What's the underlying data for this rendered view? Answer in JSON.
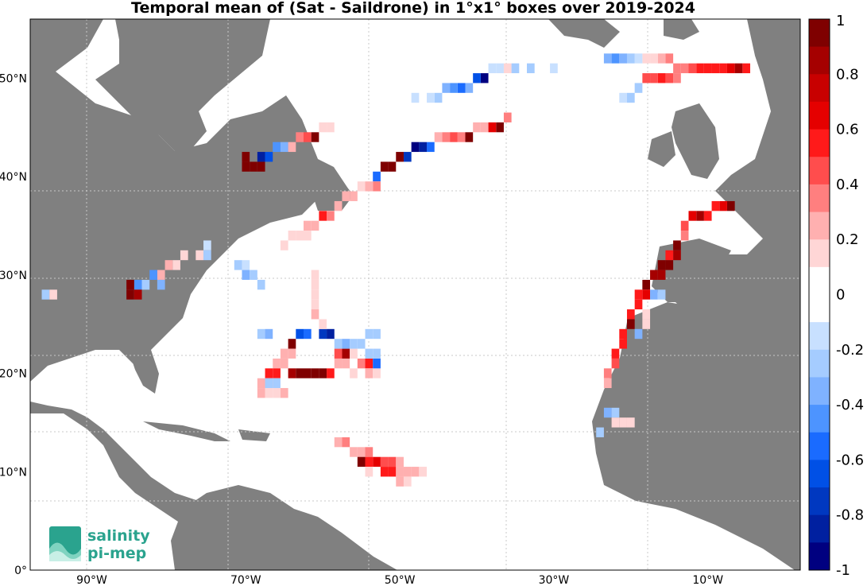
{
  "title": "Temporal mean of (Sat - Saildrone) in 1°x1° boxes over 2019-2024",
  "map": {
    "lon_range": [
      -98,
      2
    ],
    "lat_range": [
      0,
      56
    ],
    "lon_ticks": [
      {
        "value": -90,
        "label": "90°W"
      },
      {
        "value": -70,
        "label": "70°W"
      },
      {
        "value": -50,
        "label": "50°W"
      },
      {
        "value": -30,
        "label": "30°W"
      },
      {
        "value": -10,
        "label": "10°W"
      }
    ],
    "lat_ticks": [
      {
        "value": 0,
        "label": "0°"
      },
      {
        "value": 10,
        "label": "10°N"
      },
      {
        "value": 20,
        "label": "20°N"
      },
      {
        "value": 30,
        "label": "30°N"
      },
      {
        "value": 40,
        "label": "40°N"
      },
      {
        "value": 50,
        "label": "50°N"
      }
    ],
    "land_color": "#808080",
    "ocean_color": "#ffffff",
    "grid": "dotted"
  },
  "colorbar": {
    "range": [
      -1,
      1
    ],
    "ticks": [
      "1",
      "0.8",
      "0.6",
      "0.4",
      "0.2",
      "0",
      "-0.2",
      "-0.4",
      "-0.6",
      "-0.8",
      "-1"
    ],
    "colors_top_to_bottom": [
      "#7f0000",
      "#a50000",
      "#c80000",
      "#e50000",
      "#ff1a1a",
      "#ff4d4d",
      "#ff7f7f",
      "#ffb0b0",
      "#ffd6d6",
      "#ffffff",
      "#ffffff",
      "#c8e0ff",
      "#a5ccff",
      "#7fb2ff",
      "#4d94ff",
      "#1a6bff",
      "#0050e6",
      "#0038c0",
      "#0020a0",
      "#000080"
    ]
  },
  "chart_data": {
    "type": "heatmap",
    "title": "Temporal mean of (Sat - Saildrone) in 1°x1° boxes over 2019-2024",
    "xlabel": "",
    "ylabel": "",
    "value_range": [
      -1,
      1
    ],
    "cells_note": "lon, lat, value",
    "cells": [
      [
        -7,
        37,
        0.95
      ],
      [
        -8,
        37,
        0.7
      ],
      [
        -9,
        37,
        0.6
      ],
      [
        -10,
        36,
        0.6
      ],
      [
        -11,
        36,
        0.8
      ],
      [
        -12,
        36,
        0.7
      ],
      [
        -13,
        35,
        0.5
      ],
      [
        -13,
        34,
        0.4
      ],
      [
        -14,
        33,
        0.95
      ],
      [
        -14,
        32,
        0.8
      ],
      [
        -15,
        32,
        0.6
      ],
      [
        -15,
        31,
        0.9
      ],
      [
        -16,
        31,
        0.9
      ],
      [
        -16,
        30,
        0.8
      ],
      [
        -17,
        30,
        0.8
      ],
      [
        -18,
        29,
        0.9
      ],
      [
        -18,
        28,
        0.7
      ],
      [
        -19,
        28,
        0.6
      ],
      [
        -19,
        27,
        0.6
      ],
      [
        -20,
        26,
        0.6
      ],
      [
        -20,
        25,
        0.95
      ],
      [
        -21,
        24,
        0.6
      ],
      [
        -21,
        23,
        0.6
      ],
      [
        -22,
        22,
        0.6
      ],
      [
        -22,
        21,
        0.5
      ],
      [
        -23,
        20,
        0.4
      ],
      [
        -23,
        19,
        0.3
      ],
      [
        -19,
        24,
        -0.3
      ],
      [
        -18,
        25,
        0.2
      ],
      [
        -18,
        26,
        0.2
      ],
      [
        -17,
        28,
        -0.3
      ],
      [
        -16,
        28,
        -0.2
      ],
      [
        -23,
        16,
        -0.3
      ],
      [
        -22,
        16,
        -0.2
      ],
      [
        -22,
        15,
        0.2
      ],
      [
        -21,
        15,
        0.2
      ],
      [
        -20,
        15,
        0.2
      ],
      [
        -24,
        14,
        -0.2
      ],
      [
        -5,
        51,
        0.6
      ],
      [
        -6,
        51,
        0.8
      ],
      [
        -7,
        51,
        0.7
      ],
      [
        -8,
        51,
        0.6
      ],
      [
        -9,
        51,
        0.6
      ],
      [
        -10,
        51,
        0.6
      ],
      [
        -11,
        51,
        0.6
      ],
      [
        -12,
        51,
        0.5
      ],
      [
        -13,
        51,
        0.4
      ],
      [
        -14,
        51,
        0.4
      ],
      [
        -15,
        52,
        0.4
      ],
      [
        -16,
        52,
        0.3
      ],
      [
        -17,
        52,
        0.2
      ],
      [
        -18,
        52,
        0.2
      ],
      [
        -19,
        52,
        -0.1
      ],
      [
        -20,
        52,
        -0.2
      ],
      [
        -21,
        52,
        -0.3
      ],
      [
        -22,
        52,
        -0.4
      ],
      [
        -23,
        52,
        -0.3
      ],
      [
        -14,
        50,
        0.4
      ],
      [
        -15,
        50,
        0.5
      ],
      [
        -16,
        50,
        0.6
      ],
      [
        -17,
        50,
        0.5
      ],
      [
        -18,
        50,
        0.5
      ],
      [
        -19,
        49,
        -0.2
      ],
      [
        -20,
        48,
        -0.2
      ],
      [
        -21,
        48,
        -0.1
      ],
      [
        -36,
        46,
        0.4
      ],
      [
        -37,
        45,
        0.95
      ],
      [
        -38,
        45,
        0.7
      ],
      [
        -39,
        45,
        0.3
      ],
      [
        -40,
        45,
        0.3
      ],
      [
        -41,
        44,
        0.95
      ],
      [
        -42,
        44,
        0.4
      ],
      [
        -43,
        44,
        0.5
      ],
      [
        -44,
        44,
        0.4
      ],
      [
        -45,
        44,
        0.3
      ],
      [
        -46,
        43,
        -0.5
      ],
      [
        -47,
        43,
        -0.8
      ],
      [
        -48,
        43,
        -0.9
      ],
      [
        -49,
        42,
        -0.7
      ],
      [
        -50,
        42,
        0.9
      ],
      [
        -51,
        41,
        0.95
      ],
      [
        -52,
        41,
        0.95
      ],
      [
        -53,
        40,
        -0.5
      ],
      [
        -53,
        39,
        0.4
      ],
      [
        -54,
        39,
        0.3
      ],
      [
        -55,
        39,
        0.2
      ],
      [
        -56,
        38,
        0.3
      ],
      [
        -57,
        38,
        0.3
      ],
      [
        -58,
        37,
        0.3
      ],
      [
        -59,
        36,
        0.4
      ],
      [
        -60,
        36,
        0.6
      ],
      [
        -61,
        35,
        0.3
      ],
      [
        -62,
        35,
        0.3
      ],
      [
        -62,
        34,
        0.2
      ],
      [
        -63,
        34,
        0.2
      ],
      [
        -64,
        34,
        0.2
      ],
      [
        -65,
        33,
        0.2
      ],
      [
        -70,
        42,
        0.95
      ],
      [
        -70,
        41,
        0.95
      ],
      [
        -69,
        41,
        0.95
      ],
      [
        -68,
        41,
        0.9
      ],
      [
        -68,
        42,
        -0.8
      ],
      [
        -67,
        42,
        -0.6
      ],
      [
        -66,
        43,
        -0.4
      ],
      [
        -65,
        43,
        -0.3
      ],
      [
        -64,
        43,
        0.3
      ],
      [
        -63,
        44,
        0.4
      ],
      [
        -62,
        44,
        0.5
      ],
      [
        -61,
        44,
        0.95
      ],
      [
        -60,
        45,
        0.2
      ],
      [
        -59,
        45,
        0.2
      ],
      [
        -39,
        50,
        -0.9
      ],
      [
        -40,
        50,
        -0.6
      ],
      [
        -41,
        49,
        -0.3
      ],
      [
        -42,
        49,
        -0.5
      ],
      [
        -43,
        49,
        -0.4
      ],
      [
        -44,
        49,
        -0.3
      ],
      [
        -45,
        48,
        -0.2
      ],
      [
        -46,
        48,
        -0.1
      ],
      [
        -48,
        48,
        -0.1
      ],
      [
        -38,
        51,
        -0.1
      ],
      [
        -37,
        51,
        -0.1
      ],
      [
        -36,
        51,
        0.2
      ],
      [
        -35,
        51,
        -0.2
      ],
      [
        -33,
        51,
        -0.2
      ],
      [
        -30,
        51,
        -0.1
      ],
      [
        -62,
        24,
        -0.5
      ],
      [
        -63,
        24,
        -0.6
      ],
      [
        -64,
        23,
        0.95
      ],
      [
        -64,
        22,
        0.3
      ],
      [
        -65,
        22,
        0.3
      ],
      [
        -65,
        21,
        0.3
      ],
      [
        -66,
        21,
        0.3
      ],
      [
        -66,
        20,
        0.6
      ],
      [
        -67,
        20,
        0.6
      ],
      [
        -67,
        19,
        0.4
      ],
      [
        -68,
        19,
        0.3
      ],
      [
        -68,
        18,
        0.3
      ],
      [
        -67,
        18,
        0.2
      ],
      [
        -66,
        18,
        0.2
      ],
      [
        -65,
        18,
        0.3
      ],
      [
        -64,
        20,
        0.8
      ],
      [
        -63,
        20,
        0.9
      ],
      [
        -62,
        20,
        0.95
      ],
      [
        -61,
        20,
        0.95
      ],
      [
        -60,
        20,
        0.9
      ],
      [
        -59,
        20,
        0.6
      ],
      [
        -58,
        21,
        0.3
      ],
      [
        -58,
        22,
        0.5
      ],
      [
        -57,
        21,
        0.3
      ],
      [
        -57,
        22,
        0.8
      ],
      [
        -56,
        22,
        0.2
      ],
      [
        -55,
        21,
        0.4
      ],
      [
        -54,
        21,
        0.6
      ],
      [
        -54,
        20,
        0.3
      ],
      [
        -53,
        20,
        0.2
      ],
      [
        -53,
        21,
        -0.5
      ],
      [
        -56,
        20,
        0.2
      ],
      [
        -60,
        24,
        -0.7
      ],
      [
        -59,
        24,
        -0.8
      ],
      [
        -58,
        23,
        -0.2
      ],
      [
        -57,
        23,
        -0.3
      ],
      [
        -56,
        23,
        -0.2
      ],
      [
        -55,
        23,
        -0.2
      ],
      [
        -54,
        24,
        -0.2
      ],
      [
        -53,
        24,
        -0.2
      ],
      [
        -54,
        22,
        -0.2
      ],
      [
        -53,
        22,
        -0.2
      ],
      [
        -68,
        24,
        -0.2
      ],
      [
        -67,
        24,
        -0.3
      ],
      [
        -67,
        19,
        -0.2
      ],
      [
        -66,
        19,
        -0.2
      ],
      [
        -61,
        30,
        0.2
      ],
      [
        -61,
        29,
        0.2
      ],
      [
        -61,
        28,
        0.2
      ],
      [
        -61,
        27,
        0.2
      ],
      [
        -61,
        26,
        0.3
      ],
      [
        -60,
        25,
        0.2
      ],
      [
        -75,
        33,
        -0.1
      ],
      [
        -76,
        32,
        0.2
      ],
      [
        -78,
        32,
        0.2
      ],
      [
        -79,
        31,
        0.2
      ],
      [
        -80,
        31,
        0.3
      ],
      [
        -81,
        30,
        0.3
      ],
      [
        -82,
        30,
        -0.4
      ],
      [
        -81,
        29,
        -0.3
      ],
      [
        -83,
        29,
        -0.2
      ],
      [
        -84,
        29,
        -0.4
      ],
      [
        -85,
        29,
        0.95
      ],
      [
        -85,
        28,
        0.95
      ],
      [
        -84,
        28,
        0.8
      ],
      [
        -96,
        28,
        -0.2
      ],
      [
        -95,
        28,
        0.2
      ],
      [
        -75,
        32,
        -0.2
      ],
      [
        -71,
        31,
        -0.2
      ],
      [
        -70,
        31,
        -0.1
      ],
      [
        -70,
        30,
        -0.3
      ],
      [
        -69,
        30,
        -0.2
      ],
      [
        -68,
        29,
        -0.2
      ],
      [
        -58,
        13,
        0.3
      ],
      [
        -57,
        13,
        0.4
      ],
      [
        -56,
        12,
        0.3
      ],
      [
        -55,
        12,
        0.3
      ],
      [
        -54,
        12,
        0.4
      ],
      [
        -53,
        11,
        0.7
      ],
      [
        -52,
        11,
        0.5
      ],
      [
        -51,
        11,
        0.5
      ],
      [
        -50,
        11,
        0.3
      ],
      [
        -49,
        10,
        0.3
      ],
      [
        -48,
        10,
        0.3
      ],
      [
        -47,
        10,
        0.2
      ],
      [
        -52,
        10,
        0.6
      ],
      [
        -51,
        10,
        0.6
      ],
      [
        -50,
        10,
        0.3
      ],
      [
        -55,
        11,
        0.95
      ],
      [
        -54,
        11,
        0.6
      ],
      [
        -54,
        10,
        0.2
      ],
      [
        -50,
        9,
        0.3
      ],
      [
        -49,
        9,
        0.2
      ]
    ]
  },
  "logo": {
    "line1": "salinity",
    "line2": "pi-mep"
  }
}
